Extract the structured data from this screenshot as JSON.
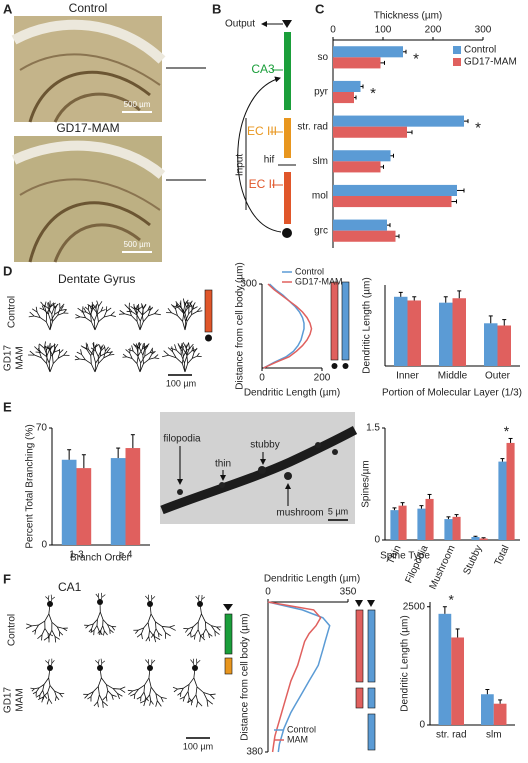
{
  "panel_labels": [
    "A",
    "B",
    "C",
    "D",
    "E",
    "F"
  ],
  "panel_a": {
    "top_title": "Control",
    "bottom_title": "GD17-MAM",
    "scale_top": "500 µm",
    "scale_bottom": "500 µm"
  },
  "panel_b": {
    "output": "Output",
    "ca3": "CA3",
    "ec3": "EC III",
    "hif": "hif",
    "ec2": "EC II",
    "input": "Input"
  },
  "panel_d": {
    "title": "Dentate Gyrus",
    "row_top": "Control",
    "row_bottom": [
      "GD17",
      "MAM"
    ],
    "scale": "100 µm"
  },
  "panel_e": {
    "labels": [
      "filopodia",
      "thin",
      "stubby",
      "mushroom"
    ],
    "scale": "5 µm"
  },
  "panel_f": {
    "title": "CA1",
    "row_top": "Control",
    "row_bottom": [
      "GD17",
      "MAM"
    ],
    "scale": "100 µm"
  },
  "chart_data": [
    {
      "type": "hbar",
      "title": "Thickness (µm)",
      "categories": [
        "so",
        "pyr",
        "str. rad",
        "slm",
        "mol",
        "grc"
      ],
      "series": [
        {
          "name": "Control",
          "color": "#5b9bd5",
          "values": [
            140,
            55,
            262,
            115,
            248,
            108
          ],
          "errors": [
            6,
            5,
            8,
            6,
            14,
            6
          ]
        },
        {
          "name": "GD17-MAM",
          "color": "#e0605e",
          "values": [
            95,
            42,
            148,
            95,
            237,
            125
          ],
          "errors": [
            8,
            4,
            10,
            6,
            10,
            7
          ]
        }
      ],
      "xlim": [
        0,
        300
      ],
      "xticks": [
        0,
        100,
        200,
        300
      ],
      "significant": [
        true,
        true,
        true,
        false,
        false,
        false
      ],
      "marker": "*",
      "legend": "top-right"
    },
    {
      "type": "profile",
      "xlabel": "Dendritic Length (µm)",
      "ylabel": "Distance from cell body (µm)",
      "distances": [
        0,
        20,
        40,
        60,
        80,
        100,
        120,
        140,
        160,
        180,
        200,
        220,
        240,
        260,
        280,
        300
      ],
      "series": [
        {
          "name": "Control",
          "color": "#5b9bd5",
          "values": [
            5,
            40,
            80,
            105,
            120,
            130,
            135,
            140,
            140,
            135,
            125,
            110,
            90,
            70,
            45,
            25
          ]
        },
        {
          "name": "GD17-MAM",
          "color": "#e0605e",
          "values": [
            5,
            45,
            90,
            115,
            135,
            150,
            160,
            165,
            160,
            150,
            135,
            115,
            90,
            65,
            40,
            20
          ]
        }
      ],
      "xlim": [
        0,
        200
      ],
      "xticks": [
        0,
        200
      ],
      "ylim": [
        0,
        300
      ],
      "yticks": [
        300
      ],
      "legend": "top"
    },
    {
      "type": "bar",
      "xlabel": "Portion of Molecular Layer (1/3)",
      "ylabel": "Dendritic Length (µm)",
      "categories": [
        "Inner",
        "Middle",
        "Outer"
      ],
      "series": [
        {
          "color": "#5b9bd5",
          "values": [
            470,
            430,
            290
          ],
          "errors": [
            30,
            40,
            50
          ]
        },
        {
          "color": "#e0605e",
          "values": [
            445,
            460,
            275
          ],
          "errors": [
            25,
            50,
            40
          ]
        }
      ],
      "ylim": [
        0,
        550
      ]
    },
    {
      "type": "bar",
      "xlabel": "Branch Order",
      "ylabel": "Percent Total Branching (%)",
      "categories": [
        "1-3",
        "≥ 4"
      ],
      "series": [
        {
          "color": "#5b9bd5",
          "values": [
            51,
            52
          ],
          "errors": [
            6,
            6
          ]
        },
        {
          "color": "#e0605e",
          "values": [
            46,
            58
          ],
          "errors": [
            8,
            8
          ]
        }
      ],
      "ylim": [
        0,
        70
      ],
      "yticks": [
        0,
        70
      ]
    },
    {
      "type": "bar",
      "xlabel": "Spine Type",
      "ylabel": "Spines/µm",
      "categories": [
        "Thin",
        "Filopodia",
        "Mushroom",
        "Stubby",
        "Total"
      ],
      "series": [
        {
          "color": "#5b9bd5",
          "values": [
            0.4,
            0.42,
            0.28,
            0.04,
            1.05
          ],
          "errors": [
            0.03,
            0.04,
            0.03,
            0.01,
            0.04
          ]
        },
        {
          "color": "#e0605e",
          "values": [
            0.46,
            0.55,
            0.31,
            0.02,
            1.3
          ],
          "errors": [
            0.04,
            0.06,
            0.03,
            0.01,
            0.06
          ]
        }
      ],
      "ylim": [
        0,
        1.5
      ],
      "yticks": [
        0,
        1.5
      ],
      "significant": [
        false,
        false,
        false,
        false,
        true
      ],
      "marker": "*"
    },
    {
      "type": "profile",
      "xlabel": "Dendritic Length (µm)",
      "ylabel": "Distance from cell body (µm)",
      "distances": [
        0,
        20,
        40,
        60,
        80,
        100,
        120,
        140,
        160,
        180,
        200,
        220,
        240,
        260,
        280,
        300,
        320,
        340,
        360,
        380
      ],
      "series": [
        {
          "name": "Control",
          "color": "#5b9bd5",
          "values": [
            0,
            150,
            240,
            270,
            260,
            250,
            240,
            230,
            220,
            200,
            180,
            160,
            140,
            120,
            100,
            85,
            70,
            60,
            50,
            45
          ]
        },
        {
          "name": "MAM",
          "color": "#e0605e",
          "values": [
            0,
            200,
            230,
            210,
            180,
            160,
            150,
            140,
            130,
            115,
            100,
            90,
            80,
            70,
            60,
            50,
            40,
            30,
            25,
            20
          ]
        }
      ],
      "xlim": [
        0,
        350
      ],
      "xticks": [
        0,
        350
      ],
      "ylim": [
        0,
        380
      ],
      "yticks": [
        380
      ],
      "y_inverted": true,
      "x_axis": "top",
      "legend": "bottom-left"
    },
    {
      "type": "bar",
      "ylabel": "Dendritic Length (µm)",
      "categories": [
        "str. rad",
        "slm"
      ],
      "series": [
        {
          "color": "#5b9bd5",
          "values": [
            2350,
            650
          ],
          "errors": [
            150,
            100
          ]
        },
        {
          "color": "#e0605e",
          "values": [
            1850,
            450
          ],
          "errors": [
            180,
            80
          ]
        }
      ],
      "ylim": [
        0,
        2600
      ],
      "yticks": [
        0,
        2500
      ],
      "significant": [
        true,
        false
      ],
      "marker": "*"
    }
  ]
}
